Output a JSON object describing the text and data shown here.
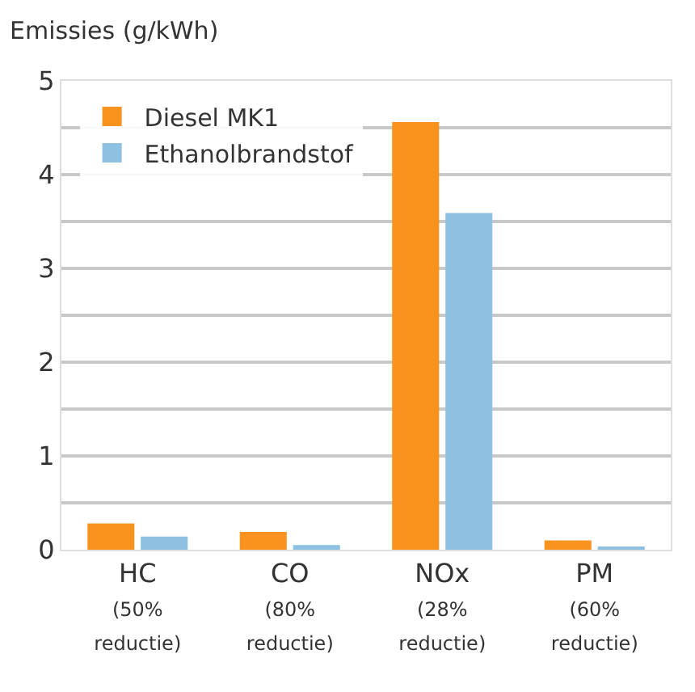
{
  "chart_data": {
    "type": "bar",
    "ylabel": "Emissies (g/kWh)",
    "categories": [
      "HC\n(50%\nreductie)",
      "CO\n(80%\nreductie)",
      "NOx\n(28%\nreductie)",
      "PM\n(60%\nreductie)"
    ],
    "series": [
      {
        "name": "Diesel MK1",
        "color": "#f7931e",
        "values": [
          0.28,
          0.19,
          4.56,
          0.1
        ]
      },
      {
        "name": "Ethanolbrandstof",
        "color": "#8dc0e1",
        "values": [
          0.14,
          0.05,
          3.59,
          0.03
        ]
      }
    ],
    "ylim": [
      0,
      5
    ],
    "yticks": [
      0,
      {
        "value": 0.5,
        "label": null
      },
      1,
      {
        "value": 1.5,
        "label": null
      },
      2,
      {
        "value": 2.5,
        "label": null
      },
      3,
      {
        "value": 3.5,
        "label": null
      },
      4,
      {
        "value": 4.5,
        "label": null
      },
      5
    ],
    "grid": "y",
    "legend": "top left"
  }
}
